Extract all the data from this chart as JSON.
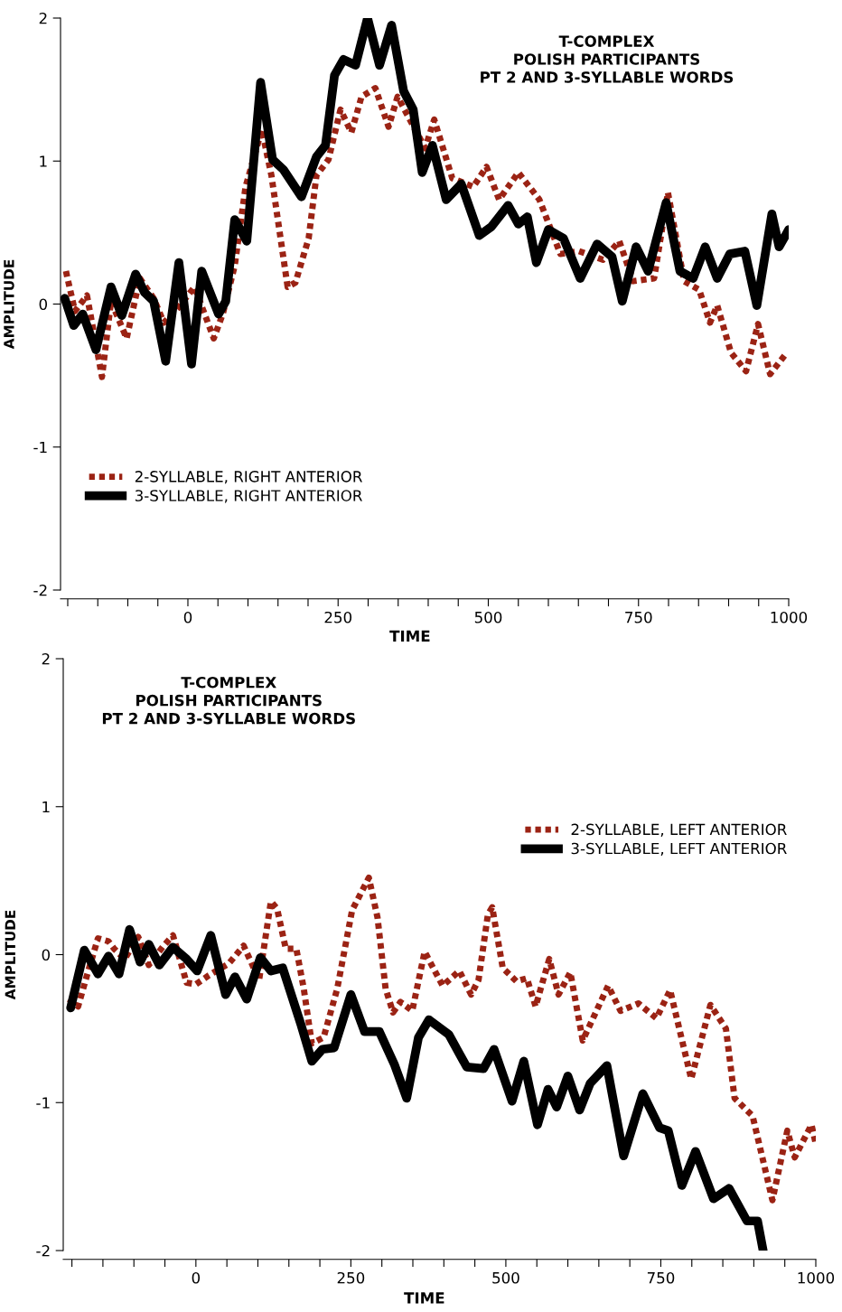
{
  "chart_data": [
    {
      "type": "line",
      "title": "T-COMPLEX\nPOLISH PARTICIPANTS\nPT 2 AND 3-SYLLABLE WORDS",
      "xlabel": "TIME",
      "ylabel": "AMPLITUDE",
      "xlim": [
        -212,
        1000
      ],
      "ylim": [
        -2,
        2
      ],
      "yticks": [
        -2,
        -1,
        0,
        1,
        2
      ],
      "xticks": [
        {
          "value": -200,
          "label": null
        },
        {
          "value": -150,
          "label": null
        },
        {
          "value": -100,
          "label": null
        },
        {
          "value": -50,
          "label": null
        },
        0,
        {
          "value": 50,
          "label": null
        },
        {
          "value": 100,
          "label": null
        },
        {
          "value": 150,
          "label": null
        },
        {
          "value": 200,
          "label": null
        },
        250,
        {
          "value": 300,
          "label": null
        },
        {
          "value": 350,
          "label": null
        },
        {
          "value": 400,
          "label": null
        },
        {
          "value": 450,
          "label": null
        },
        500,
        {
          "value": 550,
          "label": null
        },
        {
          "value": 600,
          "label": null
        },
        {
          "value": 650,
          "label": null
        },
        {
          "value": 700,
          "label": null
        },
        750,
        {
          "value": 800,
          "label": null
        },
        {
          "value": 850,
          "label": null
        },
        {
          "value": 900,
          "label": null
        },
        {
          "value": 950,
          "label": null
        },
        1000
      ],
      "legend": "bottom left",
      "grid": false,
      "series": [
        {
          "name": "2-SYLLABLE, RIGHT ANTERIOR",
          "color": "#9b2314",
          "line_style": "dotted",
          "x": [
            -203,
            -188,
            -168,
            -143,
            -128,
            -102,
            -80,
            -57,
            -40,
            -17,
            11,
            43,
            58,
            78,
            96,
            123,
            139,
            166,
            179,
            201,
            214,
            234,
            254,
            272,
            289,
            312,
            334,
            349,
            395,
            410,
            440,
            475,
            497,
            518,
            550,
            585,
            620,
            651,
            691,
            718,
            741,
            776,
            799,
            826,
            851,
            869,
            881,
            904,
            929,
            949,
            969,
            997
          ],
          "values": [
            0.23,
            -0.05,
            0.06,
            -0.51,
            0.02,
            -0.24,
            0.18,
            0.04,
            -0.13,
            -0.03,
            0.12,
            -0.24,
            -0.07,
            0.27,
            0.82,
            1.22,
            0.9,
            0.12,
            0.15,
            0.46,
            0.9,
            1.01,
            1.36,
            1.2,
            1.45,
            1.51,
            1.24,
            1.45,
            1.09,
            1.29,
            0.88,
            0.82,
            0.96,
            0.73,
            0.92,
            0.73,
            0.35,
            0.37,
            0.31,
            0.44,
            0.16,
            0.18,
            0.78,
            0.16,
            0.1,
            -0.13,
            -0.01,
            -0.34,
            -0.47,
            -0.14,
            -0.49,
            -0.34
          ]
        },
        {
          "name": "3-SYLLABLE, RIGHT ANTERIOR",
          "color": "#000000",
          "line_style": "solid",
          "x": [
            -205,
            -190,
            -175,
            -153,
            -128,
            -110,
            -87,
            -72,
            -57,
            -37,
            -15,
            6,
            23,
            51,
            63,
            78,
            98,
            121,
            141,
            159,
            189,
            214,
            229,
            244,
            259,
            279,
            299,
            319,
            339,
            359,
            375,
            390,
            407,
            430,
            455,
            485,
            505,
            533,
            550,
            565,
            580,
            600,
            625,
            653,
            681,
            706,
            723,
            746,
            766,
            796,
            819,
            841,
            861,
            881,
            902,
            927,
            947,
            972,
            984,
            1000
          ],
          "values": [
            0.04,
            -0.15,
            -0.07,
            -0.32,
            0.12,
            -0.08,
            0.21,
            0.08,
            0.02,
            -0.4,
            0.29,
            -0.42,
            0.23,
            -0.07,
            0.02,
            0.59,
            0.44,
            1.55,
            1.01,
            0.94,
            0.75,
            1.03,
            1.11,
            1.6,
            1.71,
            1.67,
            2.0,
            1.67,
            1.95,
            1.49,
            1.36,
            0.92,
            1.11,
            0.73,
            0.84,
            0.48,
            0.54,
            0.69,
            0.56,
            0.61,
            0.29,
            0.52,
            0.46,
            0.18,
            0.42,
            0.33,
            0.02,
            0.4,
            0.23,
            0.71,
            0.23,
            0.18,
            0.4,
            0.18,
            0.35,
            0.37,
            -0.01,
            0.63,
            0.4,
            0.52
          ]
        }
      ]
    },
    {
      "type": "line",
      "title": "T-COMPLEX\nPOLISH PARTICIPANTS\nPT 2 AND 3-SYLLABLE WORDS",
      "xlabel": "TIME",
      "ylabel": "AMPLITUDE",
      "xlim": [
        -214,
        1000
      ],
      "ylim": [
        -2,
        2
      ],
      "yticks": [
        -2,
        -1,
        0,
        1,
        2
      ],
      "xticks": [
        {
          "value": -200,
          "label": null
        },
        {
          "value": -150,
          "label": null
        },
        {
          "value": -100,
          "label": null
        },
        {
          "value": -50,
          "label": null
        },
        0,
        {
          "value": 50,
          "label": null
        },
        {
          "value": 100,
          "label": null
        },
        {
          "value": 150,
          "label": null
        },
        {
          "value": 200,
          "label": null
        },
        250,
        {
          "value": 300,
          "label": null
        },
        {
          "value": 350,
          "label": null
        },
        {
          "value": 400,
          "label": null
        },
        {
          "value": 450,
          "label": null
        },
        500,
        {
          "value": 550,
          "label": null
        },
        {
          "value": 600,
          "label": null
        },
        {
          "value": 650,
          "label": null
        },
        {
          "value": 700,
          "label": null
        },
        750,
        {
          "value": 800,
          "label": null
        },
        {
          "value": 850,
          "label": null
        },
        {
          "value": 900,
          "label": null
        },
        {
          "value": 950,
          "label": null
        },
        1000
      ],
      "legend": "top right",
      "grid": false,
      "series": [
        {
          "name": "2-SYLLABLE, LEFT ANTERIOR",
          "color": "#9b2314",
          "line_style": "dotted",
          "x": [
            -205,
            -190,
            -175,
            -158,
            -141,
            -132,
            -115,
            -93,
            -76,
            -52,
            -37,
            -15,
            0,
            21,
            53,
            77,
            102,
            121,
            131,
            145,
            162,
            174,
            187,
            206,
            228,
            252,
            279,
            293,
            306,
            318,
            330,
            349,
            369,
            398,
            425,
            444,
            456,
            471,
            478,
            495,
            517,
            534,
            548,
            570,
            585,
            604,
            624,
            665,
            685,
            714,
            743,
            765,
            799,
            830,
            855,
            869,
            898,
            930,
            954,
            966,
            993,
            1000
          ],
          "values": [
            -0.3,
            -0.35,
            -0.13,
            0.11,
            0.09,
            0.04,
            -0.03,
            0.12,
            -0.07,
            0.06,
            0.13,
            -0.19,
            -0.2,
            -0.14,
            -0.06,
            0.06,
            -0.17,
            0.36,
            0.31,
            0.04,
            0.04,
            -0.23,
            -0.6,
            -0.56,
            -0.23,
            0.3,
            0.52,
            0.25,
            -0.23,
            -0.39,
            -0.32,
            -0.38,
            0.02,
            -0.21,
            -0.11,
            -0.27,
            -0.17,
            0.27,
            0.32,
            -0.09,
            -0.18,
            -0.16,
            -0.35,
            -0.03,
            -0.27,
            -0.12,
            -0.58,
            -0.21,
            -0.38,
            -0.33,
            -0.43,
            -0.24,
            -0.84,
            -0.34,
            -0.5,
            -0.97,
            -1.09,
            -1.66,
            -1.19,
            -1.37,
            -1.15,
            -1.28
          ]
        },
        {
          "name": "3-SYLLABLE, LEFT ANTERIOR",
          "color": "#000000",
          "line_style": "solid",
          "x": [
            -202,
            -180,
            -158,
            -141,
            -124,
            -107,
            -90,
            -76,
            -59,
            -37,
            -15,
            2,
            24,
            48,
            63,
            82,
            104,
            121,
            140,
            170,
            187,
            204,
            223,
            250,
            272,
            296,
            320,
            340,
            359,
            376,
            408,
            437,
            464,
            481,
            510,
            529,
            551,
            568,
            582,
            600,
            619,
            636,
            663,
            690,
            721,
            748,
            762,
            784,
            806,
            835,
            860,
            889,
            906,
            915
          ],
          "values": [
            -0.36,
            0.03,
            -0.13,
            -0.01,
            -0.13,
            0.17,
            -0.05,
            0.07,
            -0.07,
            0.05,
            -0.03,
            -0.11,
            0.13,
            -0.27,
            -0.15,
            -0.3,
            -0.02,
            -0.11,
            -0.09,
            -0.48,
            -0.72,
            -0.64,
            -0.63,
            -0.27,
            -0.52,
            -0.52,
            -0.74,
            -0.97,
            -0.56,
            -0.44,
            -0.54,
            -0.76,
            -0.77,
            -0.64,
            -0.99,
            -0.72,
            -1.15,
            -0.91,
            -1.03,
            -0.82,
            -1.05,
            -0.87,
            -0.75,
            -1.36,
            -0.94,
            -1.17,
            -1.19,
            -1.56,
            -1.33,
            -1.65,
            -1.58,
            -1.8,
            -1.8,
            -2.0
          ]
        }
      ]
    }
  ]
}
